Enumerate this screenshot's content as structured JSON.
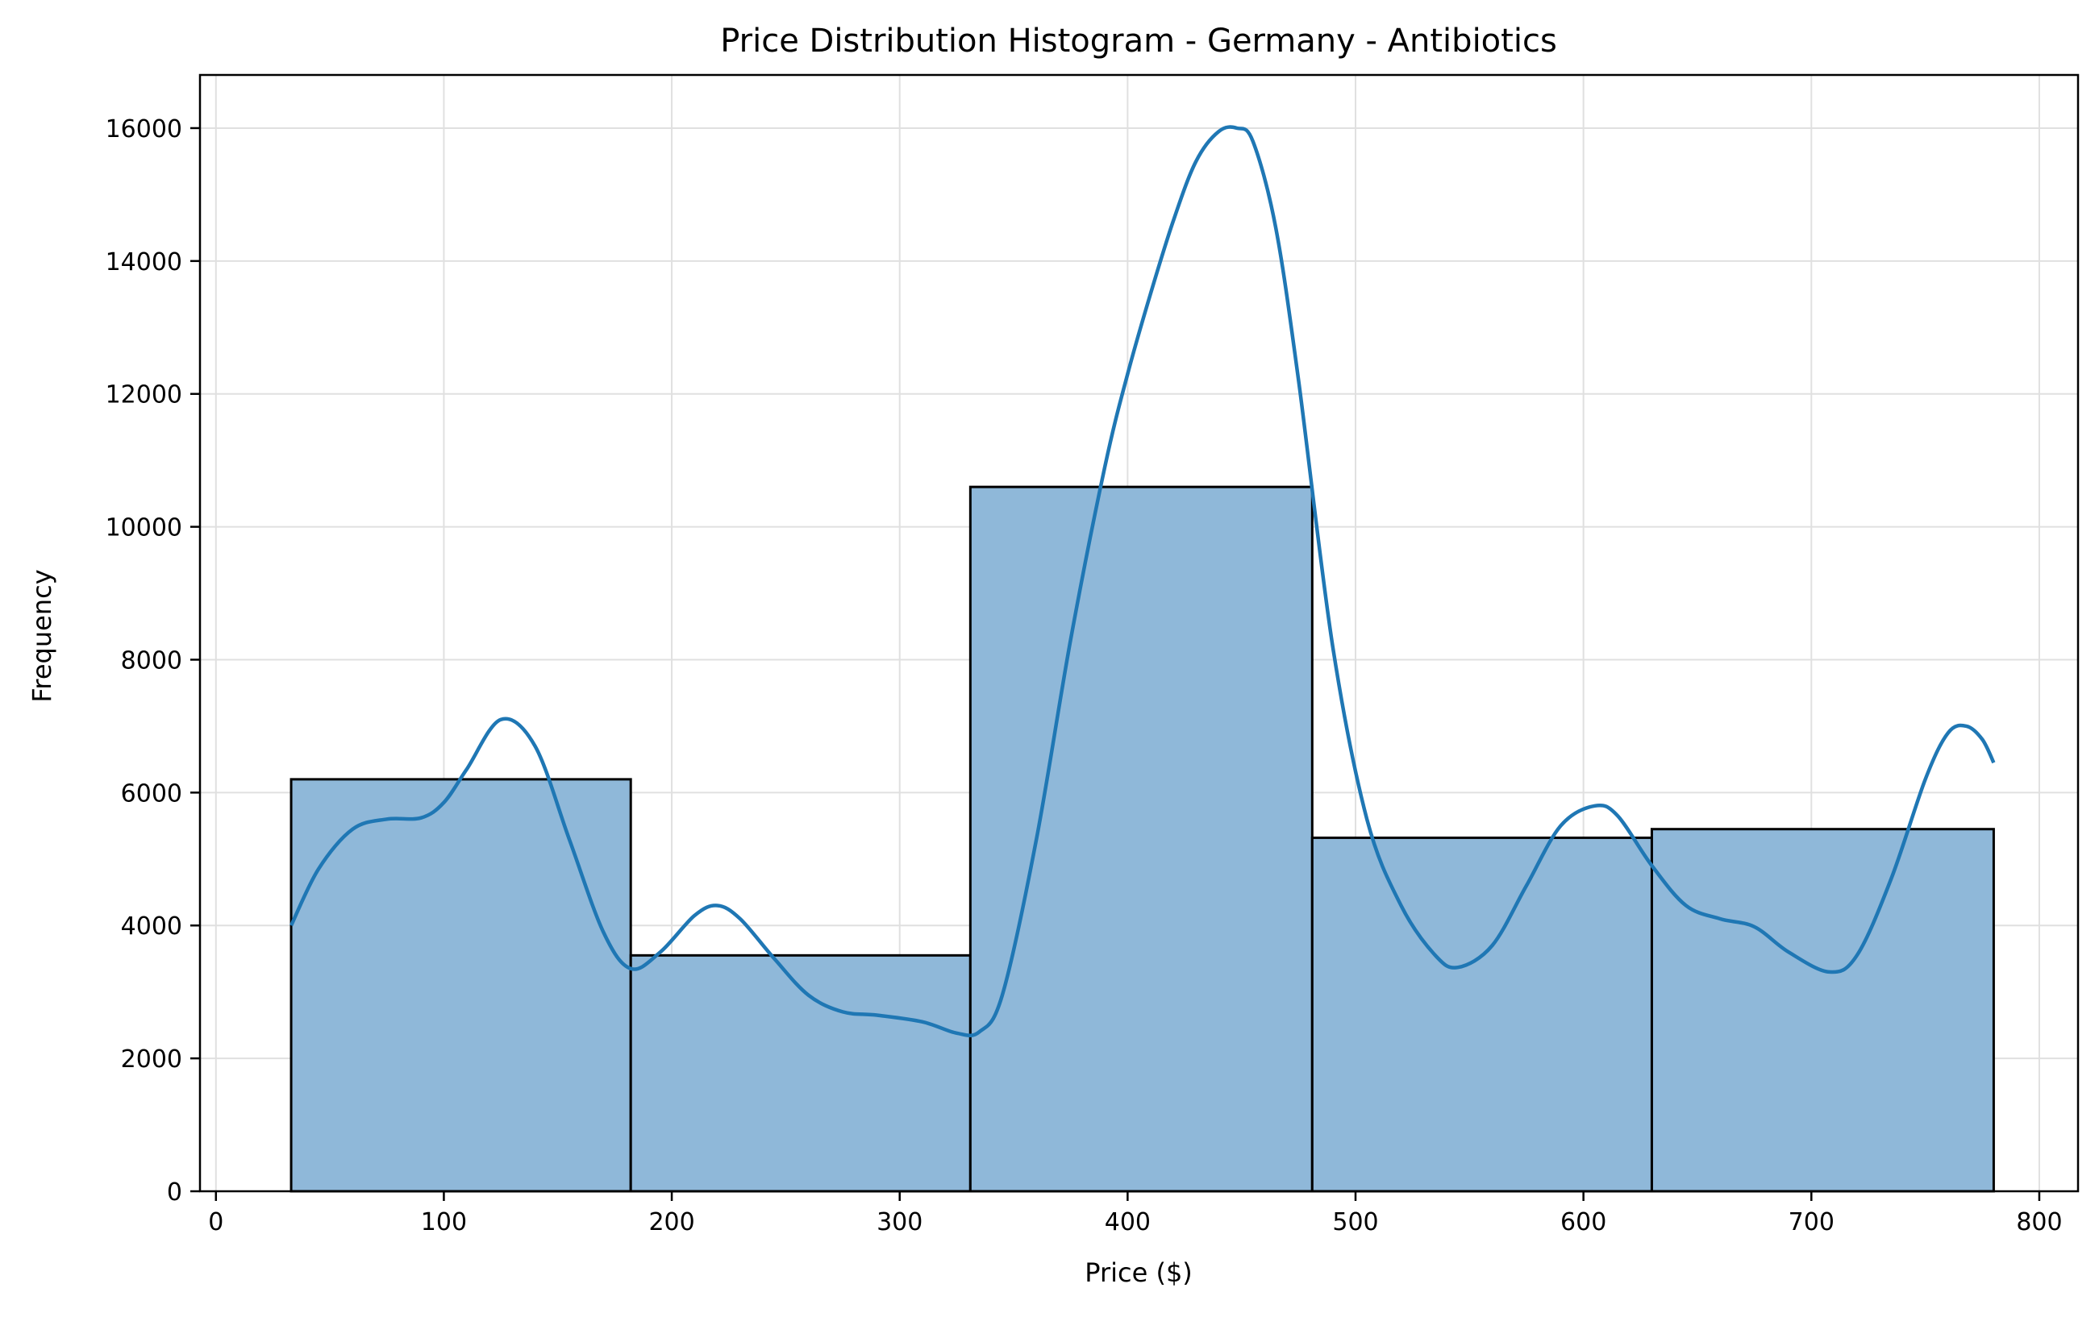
{
  "chart_data": {
    "type": "bar",
    "title": "Price Distribution Histogram - Germany - Antibiotics",
    "xlabel": "Price ($)",
    "ylabel": "Frequency",
    "xlim": [
      -7,
      817
    ],
    "ylim": [
      0,
      16800
    ],
    "x_ticks": [
      0,
      100,
      200,
      300,
      400,
      500,
      600,
      700,
      800
    ],
    "y_ticks": [
      0,
      2000,
      4000,
      6000,
      8000,
      10000,
      12000,
      14000,
      16000
    ],
    "grid": true,
    "bins": [
      {
        "x0": 33,
        "x1": 182,
        "value": 6200
      },
      {
        "x0": 182,
        "x1": 331,
        "value": 3550
      },
      {
        "x0": 331,
        "x1": 481,
        "value": 10600
      },
      {
        "x0": 481,
        "x1": 630,
        "value": 5320
      },
      {
        "x0": 630,
        "x1": 780,
        "value": 5450
      }
    ],
    "kde_x": [
      33,
      45,
      60,
      75,
      90,
      100,
      110,
      125,
      140,
      155,
      170,
      182,
      195,
      210,
      220,
      230,
      245,
      260,
      275,
      290,
      310,
      325,
      335,
      345,
      360,
      375,
      390,
      400,
      410,
      420,
      430,
      440,
      448,
      455,
      465,
      475,
      490,
      505,
      520,
      535,
      545,
      560,
      575,
      590,
      605,
      615,
      630,
      645,
      660,
      675,
      690,
      708,
      720,
      735,
      750,
      760,
      768,
      775,
      780
    ],
    "kde_y": [
      4000,
      4850,
      5450,
      5600,
      5620,
      5850,
      6350,
      7100,
      6700,
      5300,
      3900,
      3350,
      3600,
      4150,
      4300,
      4100,
      3500,
      2950,
      2700,
      2650,
      2550,
      2380,
      2400,
      2950,
      5300,
      8300,
      10900,
      12300,
      13500,
      14600,
      15500,
      15950,
      16000,
      15800,
      14500,
      12200,
      8200,
      5600,
      4300,
      3550,
      3370,
      3700,
      4600,
      5500,
      5800,
      5650,
      4900,
      4300,
      4100,
      3980,
      3600,
      3300,
      3550,
      4700,
      6200,
      6900,
      7000,
      6800,
      6450
    ],
    "colors": {
      "bar_fill": "#8fb8d9",
      "bar_edge": "#000000",
      "kde_line": "#1f77b4",
      "grid": "#e0e0e0"
    }
  }
}
